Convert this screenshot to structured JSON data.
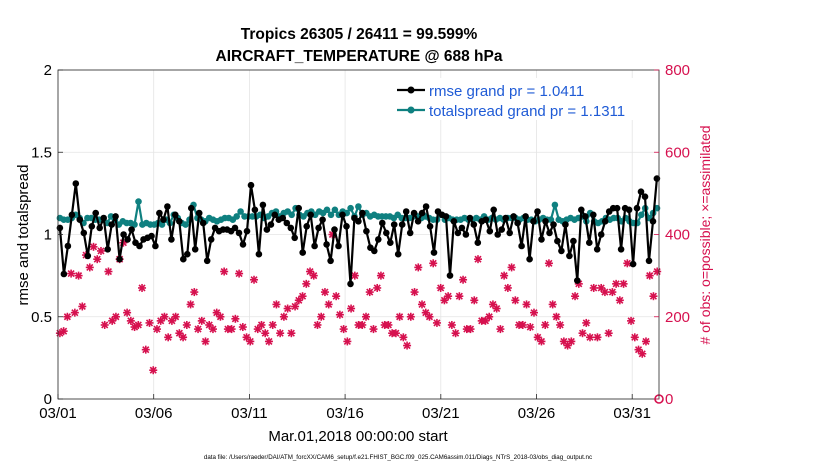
{
  "colors": {
    "rmse": "#000000",
    "spread": "#0f8080",
    "obs": "#d6114f",
    "legend_text": "#1f5bd6",
    "grid": "#e4e4e4",
    "axis": "#262626"
  },
  "chart_data": {
    "type": "line",
    "title_line1": "Tropics 26305 / 26411 = 99.599%",
    "title_line2": "AIRCRAFT_TEMPERATURE @ 688 hPa",
    "xlabel": "Mar.01,2018 00:00:00 start",
    "ylabel_left": "rmse and totalspread",
    "ylabel_right": "# of obs: o=possible; ×=assimilated",
    "footnote": "data file: /Users/raeder/DAI/ATM_forcXX/CAM6_setup/f.e21.FHIST_BGC.f09_025.CAM6assim.011/Diags_NTrS_2018-03/obs_diag_output.nc",
    "x_range": [
      0,
      31.4
    ],
    "y_left_range": [
      0,
      2
    ],
    "y_right_range": [
      0,
      800
    ],
    "x_ticks": [
      {
        "pos": 0,
        "label": "03/01"
      },
      {
        "pos": 5,
        "label": "03/06"
      },
      {
        "pos": 10,
        "label": "03/11"
      },
      {
        "pos": 15,
        "label": "03/16"
      },
      {
        "pos": 20,
        "label": "03/21"
      },
      {
        "pos": 25,
        "label": "03/26"
      },
      {
        "pos": 30,
        "label": "03/31"
      }
    ],
    "y_left_ticks": [
      {
        "value": 0,
        "label": "0"
      },
      {
        "value": 0.5,
        "label": "0.5"
      },
      {
        "value": 1,
        "label": "1"
      },
      {
        "value": 1.5,
        "label": "1.5"
      },
      {
        "value": 2,
        "label": "2"
      }
    ],
    "y_right_ticks": [
      {
        "value": 0,
        "label": "0"
      },
      {
        "value": 200,
        "label": "200"
      },
      {
        "value": 400,
        "label": "400"
      },
      {
        "value": 600,
        "label": "600"
      },
      {
        "value": 800,
        "label": "800"
      }
    ],
    "legend_entries": [
      "rmse grand pr = 1.0411",
      "totalspread grand pr = 1.1311"
    ],
    "series": [
      {
        "name": "rmse",
        "values": [
          1.04,
          0.76,
          0.93,
          1.12,
          1.31,
          1.09,
          1.01,
          0.87,
          1.05,
          1.13,
          1.04,
          1.1,
          0.91,
          1.06,
          1.11,
          0.85,
          1.0,
          0.97,
          1.03,
          0.95,
          0.93,
          0.97,
          0.98,
          0.99,
          0.93,
          1.13,
          1.09,
          1.17,
          0.97,
          1.12,
          1.08,
          0.85,
          0.88,
          1.16,
          0.91,
          1.13,
          1.07,
          0.84,
          0.97,
          1.04,
          1.02,
          1.03,
          1.03,
          1.02,
          1.04,
          1.01,
          0.94,
          1.02,
          1.3,
          1.15,
          0.88,
          1.18,
          1.03,
          1.06,
          1.12,
          1.09,
          1.1,
          1.07,
          1.04,
          0.98,
          1.16,
          0.89,
          1.05,
          1.12,
          0.93,
          1.04,
          1.09,
          0.94,
          0.84,
          1.03,
          0.93,
          1.12,
          1.05,
          0.7,
          1.1,
          1.08,
          1.13,
          1.02,
          0.92,
          0.9,
          0.97,
          1.07,
          1.01,
          0.95,
          1.06,
          0.88,
          1.06,
          1.14,
          1.01,
          1.13,
          1.08,
          1.13,
          1.17,
          1.05,
          0.89,
          1.14,
          1.12,
          1.11,
          0.75,
          1.08,
          1.01,
          1.04,
          1.0,
          1.1,
          1.06,
          0.95,
          1.08,
          1.09,
          1.02,
          1.15,
          1.0,
          1.03,
          1.1,
          1.01,
          1.11,
          1.07,
          0.93,
          1.11,
          0.85,
          1.08,
          1.14,
          0.97,
          1.08,
          1.01,
          1.06,
          0.96,
          0.9,
          1.06,
          0.87,
          0.96,
          0.72,
          1.15,
          1.11,
          0.95,
          1.12,
          0.91,
          1.0,
          1.08,
          1.14,
          1.16,
          1.16,
          0.91,
          1.16,
          1.15,
          0.82,
          1.16,
          1.26,
          1.23,
          0.84,
          1.08,
          1.34
        ]
      },
      {
        "name": "totalspread",
        "values": [
          1.1,
          1.09,
          1.09,
          1.1,
          1.12,
          1.1,
          1.07,
          1.1,
          1.1,
          1.09,
          1.09,
          1.09,
          1.07,
          1.11,
          1.09,
          1.06,
          1.08,
          1.07,
          1.07,
          1.06,
          1.2,
          1.06,
          1.07,
          1.06,
          1.06,
          1.07,
          1.06,
          1.09,
          1.07,
          1.12,
          1.1,
          1.07,
          1.06,
          1.09,
          1.18,
          1.1,
          1.09,
          1.08,
          1.1,
          1.09,
          1.08,
          1.09,
          1.1,
          1.1,
          1.09,
          1.11,
          1.14,
          1.11,
          1.11,
          1.11,
          1.11,
          1.12,
          1.1,
          1.11,
          1.13,
          1.14,
          1.11,
          1.13,
          1.14,
          1.12,
          1.16,
          1.12,
          1.11,
          1.13,
          1.14,
          1.12,
          1.14,
          1.13,
          1.15,
          1.12,
          1.15,
          1.12,
          1.14,
          1.13,
          1.16,
          1.11,
          1.17,
          1.12,
          1.13,
          1.11,
          1.12,
          1.11,
          1.11,
          1.11,
          1.11,
          1.1,
          1.12,
          1.1,
          1.1,
          1.1,
          1.11,
          1.11,
          1.1,
          1.11,
          1.1,
          1.09,
          1.09,
          1.12,
          1.09,
          1.1,
          1.09,
          1.09,
          1.09,
          1.1,
          1.09,
          1.09,
          1.1,
          1.09,
          1.11,
          1.09,
          1.1,
          1.09,
          1.1,
          1.09,
          1.1,
          1.1,
          1.1,
          1.09,
          1.1,
          1.09,
          1.09,
          1.08,
          1.09,
          1.1,
          1.09,
          1.09,
          1.18,
          1.09,
          1.08,
          1.09,
          1.1,
          1.09,
          1.1,
          1.11,
          1.08,
          1.13,
          1.08,
          1.07,
          1.08,
          1.1,
          1.09,
          1.1,
          1.1,
          1.08,
          1.1,
          1.08,
          1.07,
          1.07,
          1.12,
          1.16,
          1.1,
          1.13,
          1.16
        ]
      },
      {
        "name": "obs assimilated",
        "values": [
          160,
          165,
          200,
          305,
          210,
          300,
          225,
          350,
          320,
          370,
          340,
          360,
          180,
          310,
          190,
          200,
          340,
          380,
          210,
          190,
          175,
          180,
          270,
          120,
          185,
          70,
          170,
          190,
          200,
          150,
          190,
          200,
          160,
          150,
          180,
          230,
          260,
          170,
          190,
          140,
          180,
          170,
          210,
          200,
          310,
          170,
          170,
          195,
          305,
          175,
          150,
          140,
          290,
          170,
          180,
          160,
          140,
          180,
          230,
          160,
          200,
          220,
          160,
          225,
          240,
          250,
          280,
          310,
          300,
          180,
          200,
          260,
          230,
          400,
          250,
          205,
          170,
          140,
          220,
          300,
          180,
          180,
          200,
          260,
          170,
          270,
          300,
          180,
          180,
          160,
          160,
          200,
          150,
          130,
          200,
          260,
          320,
          230,
          210,
          200,
          330,
          185,
          270,
          240,
          250,
          180,
          160,
          250,
          290,
          170,
          170,
          240,
          340,
          190,
          190,
          200,
          230,
          220,
          170,
          300,
          270,
          320,
          240,
          180,
          180,
          230,
          175,
          210,
          150,
          140,
          180,
          330,
          230,
          200,
          180,
          140,
          130,
          140,
          250,
          280,
          160,
          185,
          150,
          270,
          150,
          270,
          260,
          160,
          260,
          280,
          240,
          280,
          330,
          190,
          150,
          120,
          110,
          140,
          300,
          250,
          310
        ]
      }
    ]
  }
}
